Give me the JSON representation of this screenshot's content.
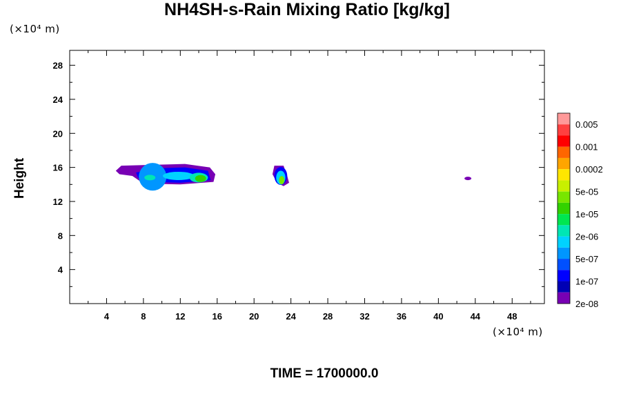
{
  "chart_data": {
    "type": "heatmap",
    "title": "NH4SH-s-Rain Mixing Ratio [kg/kg]",
    "xlabel": "",
    "ylabel": "Height",
    "x_unit": "(×10⁴ m)",
    "y_unit": "(×10⁴ m)",
    "xlim": [
      0,
      51.5
    ],
    "ylim": [
      0,
      29.75
    ],
    "x_ticks": [
      4,
      8,
      12,
      16,
      20,
      24,
      28,
      32,
      36,
      40,
      44,
      48
    ],
    "y_ticks": [
      4,
      8,
      12,
      16,
      20,
      24,
      28
    ],
    "grid": false,
    "colorbar": {
      "labels": [
        "0.005",
        "0.001",
        "0.0002",
        "5e-05",
        "1e-05",
        "2e-06",
        "5e-07",
        "1e-07",
        "2e-08"
      ],
      "colors": [
        "#ff9999",
        "#ff4040",
        "#ff0000",
        "#ff6600",
        "#ffa500",
        "#ffe600",
        "#c8f000",
        "#78e600",
        "#32d200",
        "#00e650",
        "#00e6b4",
        "#00d2ff",
        "#0096ff",
        "#0050ff",
        "#0000ff",
        "#0000b4",
        "#7800b4"
      ]
    },
    "regions": [
      {
        "x_range": [
          5.0,
          15.8
        ],
        "y_range": [
          14.2,
          16.3
        ],
        "peak": "1e-05"
      },
      {
        "x_range": [
          22.0,
          23.8
        ],
        "y_range": [
          13.8,
          16.2
        ],
        "peak": "1e-05"
      },
      {
        "x_range": [
          42.8,
          43.5
        ],
        "y_range": [
          14.5,
          14.9
        ],
        "peak": "2e-08"
      }
    ]
  },
  "footer": {
    "time_text": "TIME = 1700000.0"
  }
}
